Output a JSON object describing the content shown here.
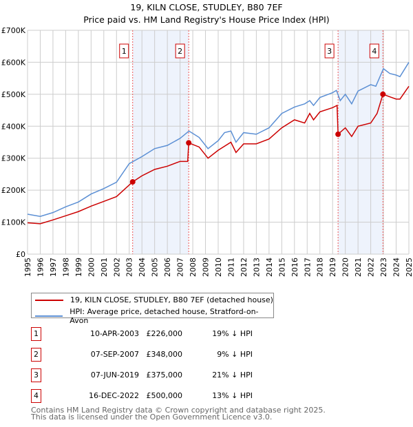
{
  "chart_data": {
    "type": "line",
    "title": "19, KILN CLOSE, STUDLEY, B80 7EF",
    "subtitle": "Price paid vs. HM Land Registry's House Price Index (HPI)",
    "xlim": [
      1995,
      2025
    ],
    "ylim": [
      0,
      700000
    ],
    "y_ticks": [
      {
        "v": 0,
        "label": "£0"
      },
      {
        "v": 100000,
        "label": "£100K"
      },
      {
        "v": 200000,
        "label": "£200K"
      },
      {
        "v": 300000,
        "label": "£300K"
      },
      {
        "v": 400000,
        "label": "£400K"
      },
      {
        "v": 500000,
        "label": "£500K"
      },
      {
        "v": 600000,
        "label": "£600K"
      },
      {
        "v": 700000,
        "label": "£700K"
      }
    ],
    "x_ticks": [
      "1995",
      "1996",
      "1997",
      "1998",
      "1999",
      "2000",
      "2001",
      "2002",
      "2003",
      "2004",
      "2005",
      "2006",
      "2007",
      "2008",
      "2009",
      "2010",
      "2011",
      "2012",
      "2013",
      "2014",
      "2015",
      "2016",
      "2017",
      "2018",
      "2019",
      "2020",
      "2021",
      "2022",
      "2023",
      "2024",
      "2025"
    ],
    "grid": true,
    "series": [
      {
        "name": "19, KILN CLOSE, STUDLEY, B80 7EF (detached house)",
        "color": "#cc0000",
        "x": [
          1995,
          1996,
          1997,
          1998,
          1999,
          2000,
          2001,
          2002,
          2003.27,
          2004,
          2005,
          2006,
          2007,
          2007.6,
          2007.68,
          2008.5,
          2009.2,
          2010,
          2011,
          2011.4,
          2012,
          2013,
          2014,
          2015,
          2016,
          2016.8,
          2017.2,
          2017.5,
          2018,
          2019,
          2019.35,
          2019.43,
          2020,
          2020.5,
          2021,
          2022,
          2022.5,
          2022.96,
          2023.5,
          2024,
          2024.3,
          2025
        ],
        "y": [
          98000,
          95000,
          107000,
          120000,
          133000,
          150000,
          165000,
          180000,
          226000,
          245000,
          265000,
          275000,
          290000,
          290000,
          348000,
          335000,
          300000,
          325000,
          350000,
          318000,
          345000,
          345000,
          360000,
          395000,
          420000,
          410000,
          440000,
          420000,
          445000,
          458000,
          465000,
          375000,
          395000,
          368000,
          400000,
          410000,
          440000,
          500000,
          492000,
          485000,
          485000,
          525000
        ]
      },
      {
        "name": "HPI: Average price, detached house, Stratford-on-Avon",
        "color": "#5b8fd4",
        "x": [
          1995,
          1996,
          1997,
          1998,
          1999,
          2000,
          2001,
          2002,
          2003,
          2004,
          2005,
          2006,
          2007,
          2007.7,
          2008.5,
          2009.2,
          2010,
          2010.5,
          2011,
          2011.4,
          2012,
          2013,
          2014,
          2015,
          2016,
          2016.8,
          2017.2,
          2017.5,
          2018,
          2019,
          2019.3,
          2019.6,
          2020,
          2020.5,
          2021,
          2022,
          2022.4,
          2023,
          2023.5,
          2024,
          2024.3,
          2025
        ],
        "y": [
          125000,
          118000,
          130000,
          148000,
          163000,
          188000,
          205000,
          225000,
          283000,
          305000,
          330000,
          340000,
          362000,
          385000,
          365000,
          330000,
          355000,
          380000,
          385000,
          350000,
          380000,
          375000,
          395000,
          440000,
          460000,
          470000,
          480000,
          465000,
          490000,
          505000,
          512000,
          480000,
          500000,
          470000,
          510000,
          530000,
          525000,
          580000,
          565000,
          560000,
          555000,
          600000
        ]
      }
    ],
    "sales": [
      {
        "label": "1",
        "x": 2003.27,
        "date": "10-APR-2003",
        "price": 226000,
        "price_text": "£226,000",
        "hpi_text": "19% ↓ HPI"
      },
      {
        "label": "2",
        "x": 2007.68,
        "date": "07-SEP-2007",
        "price": 348000,
        "price_text": "£348,000",
        "hpi_text": "9% ↓ HPI"
      },
      {
        "label": "3",
        "x": 2019.43,
        "date": "07-JUN-2019",
        "price": 375000,
        "price_text": "£375,000",
        "hpi_text": "21% ↓ HPI"
      },
      {
        "label": "4",
        "x": 2022.96,
        "date": "16-DEC-2022",
        "price": 500000,
        "price_text": "£500,000",
        "hpi_text": "13% ↓ HPI"
      }
    ],
    "shaded": [
      [
        2003.27,
        2007.68
      ],
      [
        2019.43,
        2022.96
      ]
    ]
  },
  "footer": {
    "line1": "Contains HM Land Registry data © Crown copyright and database right 2025.",
    "line2": "This data is licensed under the Open Government Licence v3.0."
  }
}
